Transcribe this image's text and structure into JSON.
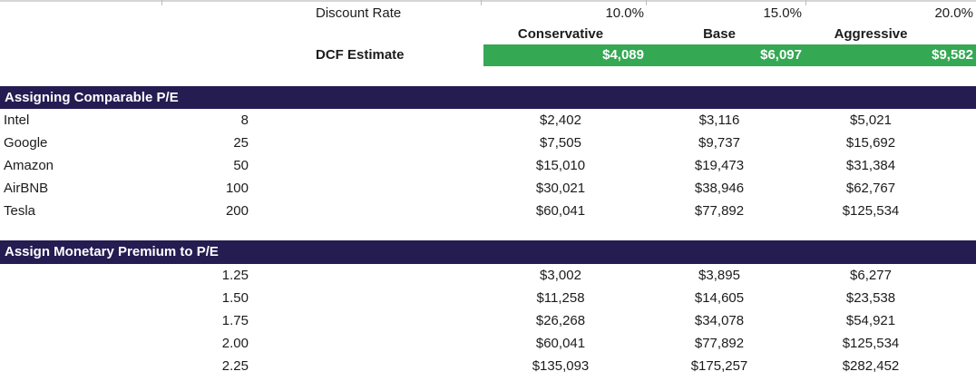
{
  "colors": {
    "accent_green": "#34a853",
    "section_navy": "#251c52",
    "dcf_value_text": "#ffffff"
  },
  "header": {
    "discount_rate_label": "Discount Rate",
    "discount_rates": [
      "10.0%",
      "15.0%",
      "20.0%"
    ],
    "scenarios": [
      "Conservative",
      "Base",
      "Aggressive"
    ],
    "dcf_estimate_label": "DCF Estimate",
    "dcf_values": [
      "$4,089",
      "$6,097",
      "$9,582"
    ]
  },
  "sections": [
    {
      "title": "Assigning Comparable P/E",
      "rows": [
        {
          "label": "Intel",
          "multiple": "8",
          "values": [
            "$2,402",
            "$3,116",
            "$5,021"
          ]
        },
        {
          "label": "Google",
          "multiple": "25",
          "values": [
            "$7,505",
            "$9,737",
            "$15,692"
          ]
        },
        {
          "label": "Amazon",
          "multiple": "50",
          "values": [
            "$15,010",
            "$19,473",
            "$31,384"
          ]
        },
        {
          "label": "AirBNB",
          "multiple": "100",
          "values": [
            "$30,021",
            "$38,946",
            "$62,767"
          ]
        },
        {
          "label": "Tesla",
          "multiple": "200",
          "values": [
            "$60,041",
            "$77,892",
            "$125,534"
          ]
        }
      ]
    },
    {
      "title": "Assign Monetary Premium to P/E",
      "rows": [
        {
          "multiple": "1.25",
          "values": [
            "$3,002",
            "$3,895",
            "$6,277"
          ]
        },
        {
          "multiple": "1.50",
          "values": [
            "$11,258",
            "$14,605",
            "$23,538"
          ]
        },
        {
          "multiple": "1.75",
          "values": [
            "$26,268",
            "$34,078",
            "$54,921"
          ]
        },
        {
          "multiple": "2.00",
          "values": [
            "$60,041",
            "$77,892",
            "$125,534"
          ]
        },
        {
          "multiple": "2.25",
          "values": [
            "$135,093",
            "$175,257",
            "$282,452"
          ]
        }
      ]
    }
  ]
}
